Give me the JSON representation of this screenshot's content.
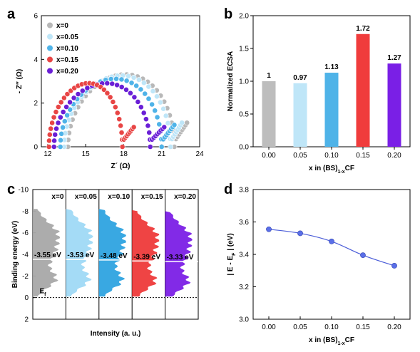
{
  "panels": {
    "a": "a",
    "b": "b",
    "c": "c",
    "d": "d"
  },
  "chart_data": [
    {
      "panel": "a",
      "type": "scatter",
      "xlabel": "Z´ (Ω)",
      "ylabel": "- Z″ (Ω)",
      "xlim": [
        11.5,
        24
      ],
      "ylim": [
        0,
        6
      ],
      "xticks": [
        "12",
        "15",
        "18",
        "21",
        "24"
      ],
      "yticks": [
        "0",
        "2",
        "4",
        "6"
      ],
      "legend_position": "top-left",
      "series": [
        {
          "name": "x=0",
          "color": "#b8b8b8",
          "x0": 13.6,
          "x1": 22.0,
          "peak": 3.3,
          "tail_end": [
            23.0,
            1.1
          ]
        },
        {
          "name": "x=0.05",
          "color": "#bfe6f8",
          "x0": 13.3,
          "x1": 21.7,
          "peak": 3.25,
          "tail_end": [
            22.6,
            1.1
          ]
        },
        {
          "name": "x=0.10",
          "color": "#4fb3e8",
          "x0": 13.0,
          "x1": 21.0,
          "peak": 3.1,
          "tail_end": [
            22.0,
            1.0
          ]
        },
        {
          "name": "x=0.15",
          "color": "#e84545",
          "x0": 12.1,
          "x1": 17.9,
          "peak": 2.9,
          "tail_end": [
            18.8,
            0.9
          ]
        },
        {
          "name": "x=0.20",
          "color": "#6a1fd6",
          "x0": 12.5,
          "x1": 20.1,
          "peak": 2.9,
          "tail_end": [
            21.2,
            0.9
          ]
        }
      ]
    },
    {
      "panel": "b",
      "type": "bar",
      "ylabel": "Normalized ECSA",
      "xlabel_parts": [
        "x in (BS)",
        "1-x",
        "CF"
      ],
      "ylim": [
        0,
        2.0
      ],
      "yticks": [
        "0.0",
        "0.5",
        "1.0",
        "1.5",
        "2.0"
      ],
      "categories": [
        "0.00",
        "0.05",
        "0.10",
        "0.15",
        "0.20"
      ],
      "values": [
        1,
        0.97,
        1.13,
        1.72,
        1.27
      ],
      "labels": [
        "1",
        "0.97",
        "1.13",
        "1.72",
        "1.27"
      ],
      "colors": [
        "#bdbdbd",
        "#bfe6f8",
        "#4fb3e8",
        "#f03c3c",
        "#7a1fe6"
      ]
    },
    {
      "panel": "c",
      "type": "area",
      "ylabel": "Binding energy (eV)",
      "xlabel": "Intensity (a. u.)",
      "ylim": [
        2,
        -10
      ],
      "yticks": [
        "2",
        "0",
        "-2",
        "-4",
        "-6",
        "-8",
        "-10"
      ],
      "fermi_label": "E",
      "fermi_sub": "f",
      "series": [
        {
          "name": "x=0",
          "center": -3.55,
          "label": "-3.55 eV",
          "color": "#a8a8a8"
        },
        {
          "name": "x=0.05",
          "center": -3.53,
          "label": "-3.53 eV",
          "color": "#9fd9f5"
        },
        {
          "name": "x=0.10",
          "center": -3.48,
          "label": "-3.48 eV",
          "color": "#2ea3e0"
        },
        {
          "name": "x=0.15",
          "center": -3.39,
          "label": "-3.39 eV",
          "color": "#ee3a3a"
        },
        {
          "name": "x=0.20",
          "center": -3.33,
          "label": "-3.33 eV",
          "color": "#7b1fe6"
        }
      ]
    },
    {
      "panel": "d",
      "type": "line",
      "ylabel_parts": [
        "| E - E",
        "F",
        " |  (eV)"
      ],
      "xlabel_parts": [
        "x in (BS)",
        "1-x",
        "CF"
      ],
      "xlim": [
        -0.025,
        0.225
      ],
      "ylim": [
        3.0,
        3.8
      ],
      "xticks": [
        "0.00",
        "0.05",
        "0.10",
        "0.15",
        "0.20"
      ],
      "yticks": [
        "3.0",
        "3.2",
        "3.4",
        "3.6",
        "3.8"
      ],
      "x": [
        0.0,
        0.05,
        0.1,
        0.15,
        0.2
      ],
      "values": [
        3.555,
        3.53,
        3.48,
        3.395,
        3.33
      ],
      "color": "#4a5cd8"
    }
  ]
}
